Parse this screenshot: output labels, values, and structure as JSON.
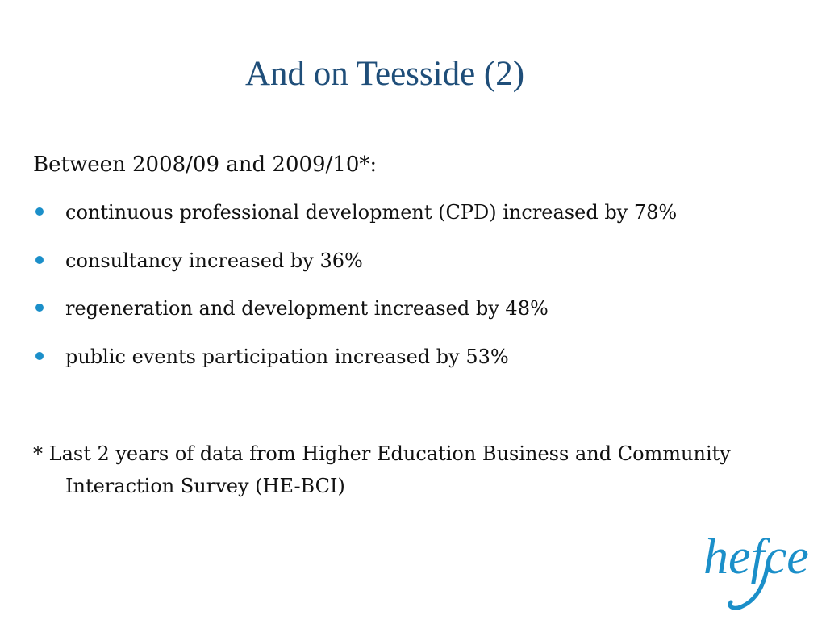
{
  "slide": {
    "title": "And on Teesside (2)",
    "intro": "Between 2008/09 and 2009/10*:",
    "bullets": [
      {
        "text": "continuous professional development (CPD) increased by 78%"
      },
      {
        "text": "consultancy increased by 36%"
      },
      {
        "text": "regeneration and development increased by 48%"
      },
      {
        "text": "public events participation increased by 53%"
      }
    ],
    "footnote": "* Last 2 years of data from Higher Education Business and Community Interaction Survey (HE-BCI)",
    "logo": {
      "text": "hefce",
      "color": "#1b8fc9"
    }
  },
  "colors": {
    "title": "#1f4e79",
    "bullet": "#1b8fc9",
    "body_text": "#111111"
  }
}
